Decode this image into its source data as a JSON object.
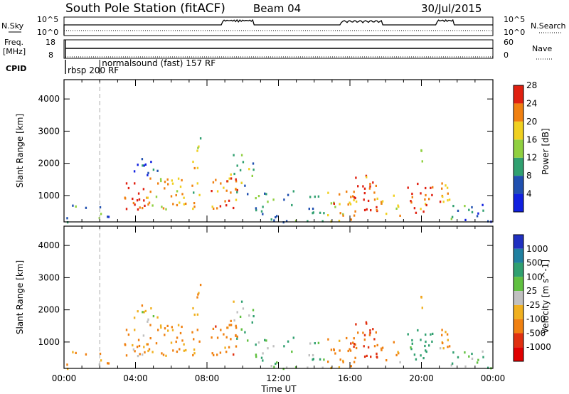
{
  "header": {
    "station": "South Pole Station (fitACF)",
    "beam": "Beam 04",
    "date": "30/Jul/2015"
  },
  "strips": {
    "nsky_label": "N.Sky",
    "nsky_ticks": [
      "10^5",
      "10^0"
    ],
    "nsearch_label": "N.Search",
    "nsearch_ticks": [
      "10^5",
      "10^0"
    ],
    "freq_label": "Freq.",
    "freq_unit": "[MHz]",
    "freq_ticks": [
      "18",
      "8"
    ],
    "nave_label": "Nave",
    "nave_ticks": [
      "60",
      "0"
    ],
    "cpid_label": "CPID",
    "cpid_segments": [
      {
        "label": "rbsp 200 RF",
        "start_hour": 0
      },
      {
        "label": "normalsound (fast) 157 RF",
        "start_hour": 2
      }
    ]
  },
  "chart_data": [
    {
      "type": "heatmap",
      "name": "power",
      "ylabel": "Slant Range [km]",
      "yticks": [
        1000,
        2000,
        3000,
        4000
      ],
      "ylim": [
        180,
        4600
      ],
      "xlim": [
        0,
        24
      ],
      "colorbar": {
        "label": "Power [dB]",
        "ticks": [
          "4",
          "8",
          "12",
          "16",
          "20",
          "24",
          "28"
        ],
        "colors": [
          "#1020e0",
          "#2050b0",
          "#30a070",
          "#90d040",
          "#f0d020",
          "#f08010",
          "#e02010"
        ]
      }
    },
    {
      "type": "heatmap",
      "name": "velocity",
      "ylabel": "Slant Range [km]",
      "yticks": [
        1000,
        2000,
        3000,
        4000
      ],
      "ylim": [
        180,
        4600
      ],
      "xlim": [
        0,
        24
      ],
      "colorbar": {
        "label": "Velocity [m s^-1]",
        "ticks": [
          "1000",
          "500",
          "100",
          "25",
          "-25",
          "-100",
          "-500",
          "-1000"
        ],
        "colors": [
          "#2030c0",
          "#2080a0",
          "#30a070",
          "#60c040",
          "#c0c0c0",
          "#f0b020",
          "#f08010",
          "#e03010",
          "#e00000"
        ]
      }
    }
  ],
  "xaxis": {
    "label": "Time UT",
    "ticks": [
      "00:00",
      "04:00",
      "08:00",
      "12:00",
      "16:00",
      "20:00",
      "00:00"
    ]
  },
  "clusters": [
    {
      "t0": 0.0,
      "t1": 2.5,
      "r0": 180,
      "r1": 800,
      "p": 10,
      "v": -80,
      "d": 0.35
    },
    {
      "t0": 3.2,
      "t1": 4.6,
      "r0": 600,
      "r1": 1500,
      "p": 26,
      "v": -120,
      "d": 0.85
    },
    {
      "t0": 3.8,
      "t1": 5.2,
      "r0": 1600,
      "r1": 2300,
      "p": 6,
      "v": -30,
      "d": 0.6
    },
    {
      "t0": 4.6,
      "t1": 6.8,
      "r0": 600,
      "r1": 1600,
      "p": 20,
      "v": -200,
      "d": 0.8
    },
    {
      "t0": 7.0,
      "t1": 7.6,
      "r0": 600,
      "r1": 2600,
      "p": 18,
      "v": -150,
      "d": 0.55
    },
    {
      "t0": 7.4,
      "t1": 7.8,
      "r0": 2400,
      "r1": 2900,
      "p": 14,
      "v": -60,
      "d": 0.5
    },
    {
      "t0": 8.2,
      "t1": 9.8,
      "r0": 600,
      "r1": 1700,
      "p": 25,
      "v": -300,
      "d": 0.85
    },
    {
      "t0": 9.4,
      "t1": 10.8,
      "r0": 900,
      "r1": 2300,
      "p": 12,
      "v": 60,
      "d": 0.45
    },
    {
      "t0": 10.6,
      "t1": 14.5,
      "r0": 200,
      "r1": 1200,
      "p": 10,
      "v": 80,
      "d": 0.45
    },
    {
      "t0": 14.6,
      "t1": 16.2,
      "r0": 200,
      "r1": 1200,
      "p": 22,
      "v": -200,
      "d": 0.7
    },
    {
      "t0": 16.0,
      "t1": 17.6,
      "r0": 500,
      "r1": 1700,
      "p": 26,
      "v": -500,
      "d": 0.85
    },
    {
      "t0": 17.6,
      "t1": 18.8,
      "r0": 300,
      "r1": 1100,
      "p": 20,
      "v": -120,
      "d": 0.6
    },
    {
      "t0": 19.2,
      "t1": 20.6,
      "r0": 400,
      "r1": 1400,
      "p": 24,
      "v": 150,
      "d": 0.8
    },
    {
      "t0": 20.8,
      "t1": 21.8,
      "r0": 700,
      "r1": 1500,
      "p": 22,
      "v": -120,
      "d": 0.75
    },
    {
      "t0": 21.6,
      "t1": 24.0,
      "r0": 180,
      "r1": 800,
      "p": 8,
      "v": 90,
      "d": 0.55
    },
    {
      "t0": 19.9,
      "t1": 20.3,
      "r0": 2000,
      "r1": 2700,
      "p": 12,
      "v": -60,
      "d": 0.5
    }
  ]
}
